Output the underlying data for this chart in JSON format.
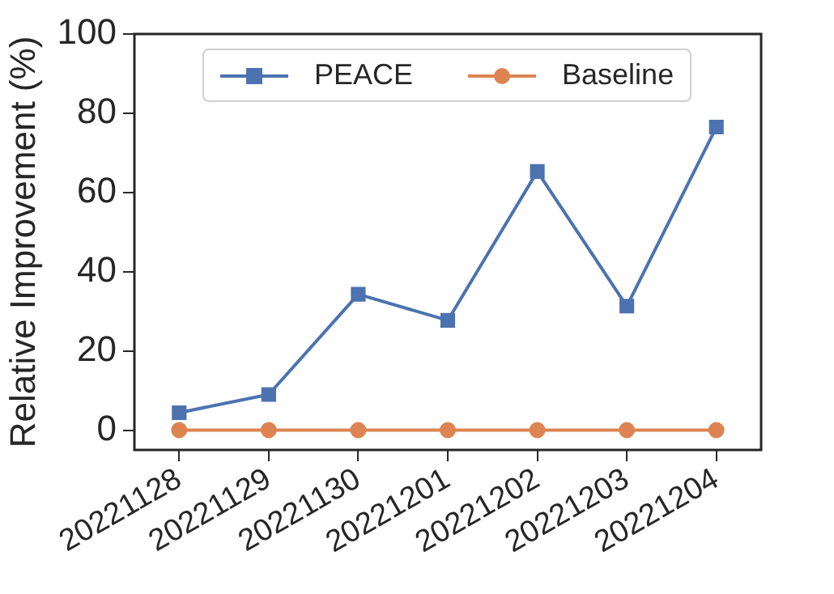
{
  "chart_data": {
    "type": "line",
    "ylabel": "Relative Improvement (%)",
    "categories": [
      "20221128",
      "20221129",
      "20221130",
      "20221201",
      "20221202",
      "20221203",
      "20221204"
    ],
    "series": [
      {
        "name": "PEACE",
        "color": "#4c72b0",
        "marker": "square",
        "values": [
          4.4,
          9.0,
          34.3,
          27.7,
          65.3,
          31.3,
          76.5
        ]
      },
      {
        "name": "Baseline",
        "color": "#dd8452",
        "marker": "circle",
        "values": [
          0,
          0,
          0,
          0,
          0,
          0,
          0
        ]
      }
    ],
    "ylim": [
      -5,
      100
    ],
    "yticks": [
      0,
      20,
      40,
      60,
      80,
      100
    ],
    "grid": false,
    "legend": "top",
    "line_style": "solid"
  }
}
